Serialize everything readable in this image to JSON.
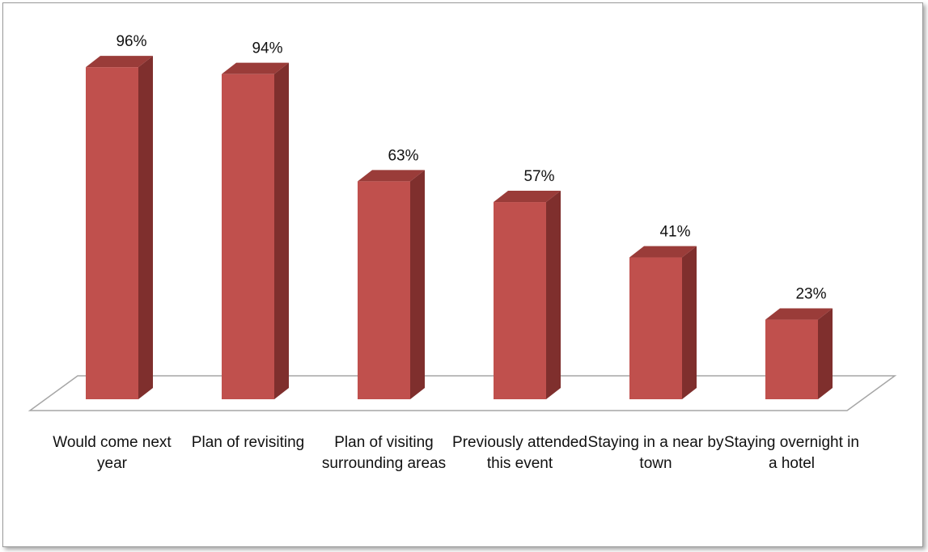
{
  "chart_data": {
    "type": "bar",
    "style": "3d-column",
    "categories": [
      "Would come next year",
      "Plan of revisiting",
      "Plan of visiting surrounding areas",
      "Previously attended this event",
      "Staying in a near by town",
      "Staying overnight in a hotel"
    ],
    "values": [
      96,
      94,
      63,
      57,
      41,
      23
    ],
    "value_labels": [
      "96%",
      "94%",
      "63%",
      "57%",
      "41%",
      "23%"
    ],
    "unit": "%",
    "title": "",
    "xlabel": "",
    "ylabel": "",
    "ylim": [
      0,
      100
    ],
    "grid": false,
    "legend": "none",
    "colors": {
      "bar_front": "#C0504D",
      "bar_side": "#7F2F2D",
      "bar_top": "#9A3C39",
      "floor_stroke": "#A6A6A6"
    }
  }
}
